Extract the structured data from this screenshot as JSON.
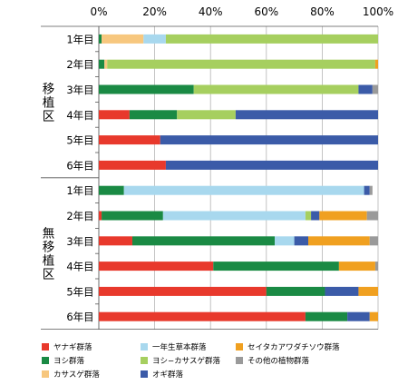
{
  "chart_data": {
    "type": "bar",
    "orientation": "horizontal",
    "stacked": true,
    "percent_axis": true,
    "x_ticks": [
      "0%",
      "20%",
      "40%",
      "60%",
      "80%",
      "100%"
    ],
    "xlim": [
      0,
      100
    ],
    "grid": true,
    "legend_position": "bottom",
    "groups": [
      {
        "label": "移植区",
        "rows": [
          "1年目",
          "2年目",
          "3年目",
          "4年目",
          "5年目",
          "6年目"
        ]
      },
      {
        "label": "無移植区",
        "rows": [
          "1年目",
          "2年目",
          "3年目",
          "4年目",
          "5年目",
          "6年目"
        ]
      }
    ],
    "categories": [
      "1年目",
      "2年目",
      "3年目",
      "4年目",
      "5年目",
      "6年目",
      "1年目",
      "2年目",
      "3年目",
      "4年目",
      "5年目",
      "6年目"
    ],
    "series": [
      {
        "name": "ヤナギ群落",
        "color": "#e8392c",
        "values": [
          0,
          0,
          0,
          11,
          22,
          24,
          0,
          1,
          12,
          41,
          60,
          74
        ]
      },
      {
        "name": "ヨシ群落",
        "color": "#1a8a44",
        "values": [
          1,
          2,
          34,
          17,
          0,
          0,
          9,
          22,
          51,
          45,
          21,
          15
        ]
      },
      {
        "name": "カサスゲ群落",
        "color": "#f7c77e",
        "values": [
          15,
          1,
          0,
          0,
          0,
          0,
          0,
          0,
          0,
          0,
          0,
          0
        ]
      },
      {
        "name": "一年生草本群落",
        "color": "#a8d8ee",
        "values": [
          8,
          0,
          0,
          0,
          0,
          0,
          86,
          51,
          7,
          0,
          0,
          0
        ]
      },
      {
        "name": "ヨシ−カサスゲ群落",
        "color": "#a6cf5f",
        "values": [
          76,
          96,
          59,
          21,
          0,
          0,
          0,
          2,
          0,
          0,
          0,
          0
        ]
      },
      {
        "name": "オギ群落",
        "color": "#3b5ba8",
        "values": [
          0,
          0,
          5,
          51,
          78,
          76,
          2,
          3,
          5,
          0,
          12,
          8
        ]
      },
      {
        "name": "セイタカアワダチソウ群落",
        "color": "#f0a020",
        "values": [
          0,
          1,
          0,
          0,
          0,
          0,
          0,
          17,
          22,
          13,
          7,
          3
        ]
      },
      {
        "name": "その他の植物群落",
        "color": "#9a9a9a",
        "values": [
          0,
          0,
          2,
          0,
          0,
          0,
          1,
          4,
          3,
          1,
          0,
          0
        ]
      }
    ]
  },
  "legend": [
    {
      "name": "ヤナギ群落",
      "color": "#e8392c"
    },
    {
      "name": "一年生草本群落",
      "color": "#a8d8ee"
    },
    {
      "name": "セイタカアワダチソウ群落",
      "color": "#f0a020"
    },
    {
      "name": "ヨシ群落",
      "color": "#1a8a44"
    },
    {
      "name": "ヨシ−カサスゲ群落",
      "color": "#a6cf5f"
    },
    {
      "name": "その他の植物群落",
      "color": "#9a9a9a"
    },
    {
      "name": "カサスゲ群落",
      "color": "#f7c77e"
    },
    {
      "name": "オギ群落",
      "color": "#3b5ba8"
    }
  ]
}
